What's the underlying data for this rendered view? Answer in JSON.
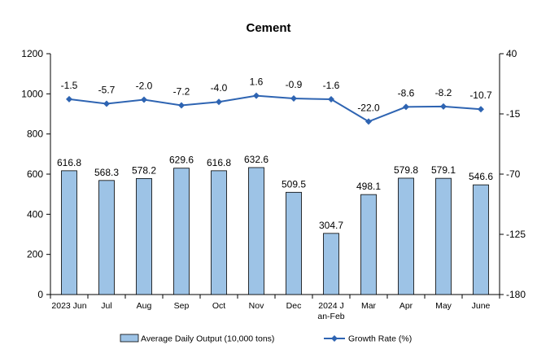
{
  "chart_data": {
    "type": "bar",
    "title": "Cement",
    "categories": [
      "2023 Jun",
      "Jul",
      "Aug",
      "Sep",
      "Oct",
      "Nov",
      "Dec",
      "2024 Jan-Feb",
      "Mar",
      "Apr",
      "May",
      "June"
    ],
    "series": [
      {
        "name": "Average Daily Output (10,000 tons)",
        "type": "bar",
        "axis": "left",
        "color": "#9DC3E6",
        "edge_color": "#000000",
        "values": [
          616.8,
          568.3,
          578.2,
          629.6,
          616.8,
          632.6,
          509.5,
          304.7,
          498.1,
          579.8,
          579.1,
          546.6
        ],
        "labels": [
          "616.8",
          "568.3",
          "578.2",
          "629.6",
          "616.8",
          "632.6",
          "509.5",
          "304.7",
          "498.1",
          "579.8",
          "579.1",
          "546.6"
        ]
      },
      {
        "name": "Growth Rate (%)",
        "type": "line",
        "axis": "right",
        "color": "#2E64B2",
        "marker": "diamond",
        "values": [
          -1.5,
          -5.7,
          -2.0,
          -7.2,
          -4.0,
          1.6,
          -0.9,
          -1.6,
          -22.0,
          -8.6,
          -8.2,
          -10.7
        ],
        "labels": [
          "-1.5",
          "-5.7",
          "-2.0",
          "-7.2",
          "-4.0",
          "1.6",
          "-0.9",
          "-1.6",
          "-22.0",
          "-8.6",
          "-8.2",
          "-10.7"
        ]
      }
    ],
    "y_left": {
      "lim": [
        0,
        1200
      ],
      "ticks": [
        "0",
        "200",
        "400",
        "600",
        "800",
        "1000",
        "1200"
      ]
    },
    "y_right": {
      "lim": [
        -180,
        40
      ],
      "ticks": [
        "-180",
        "-125",
        "-70",
        "-15",
        "40"
      ]
    },
    "grid": false,
    "legend": "bottom"
  }
}
